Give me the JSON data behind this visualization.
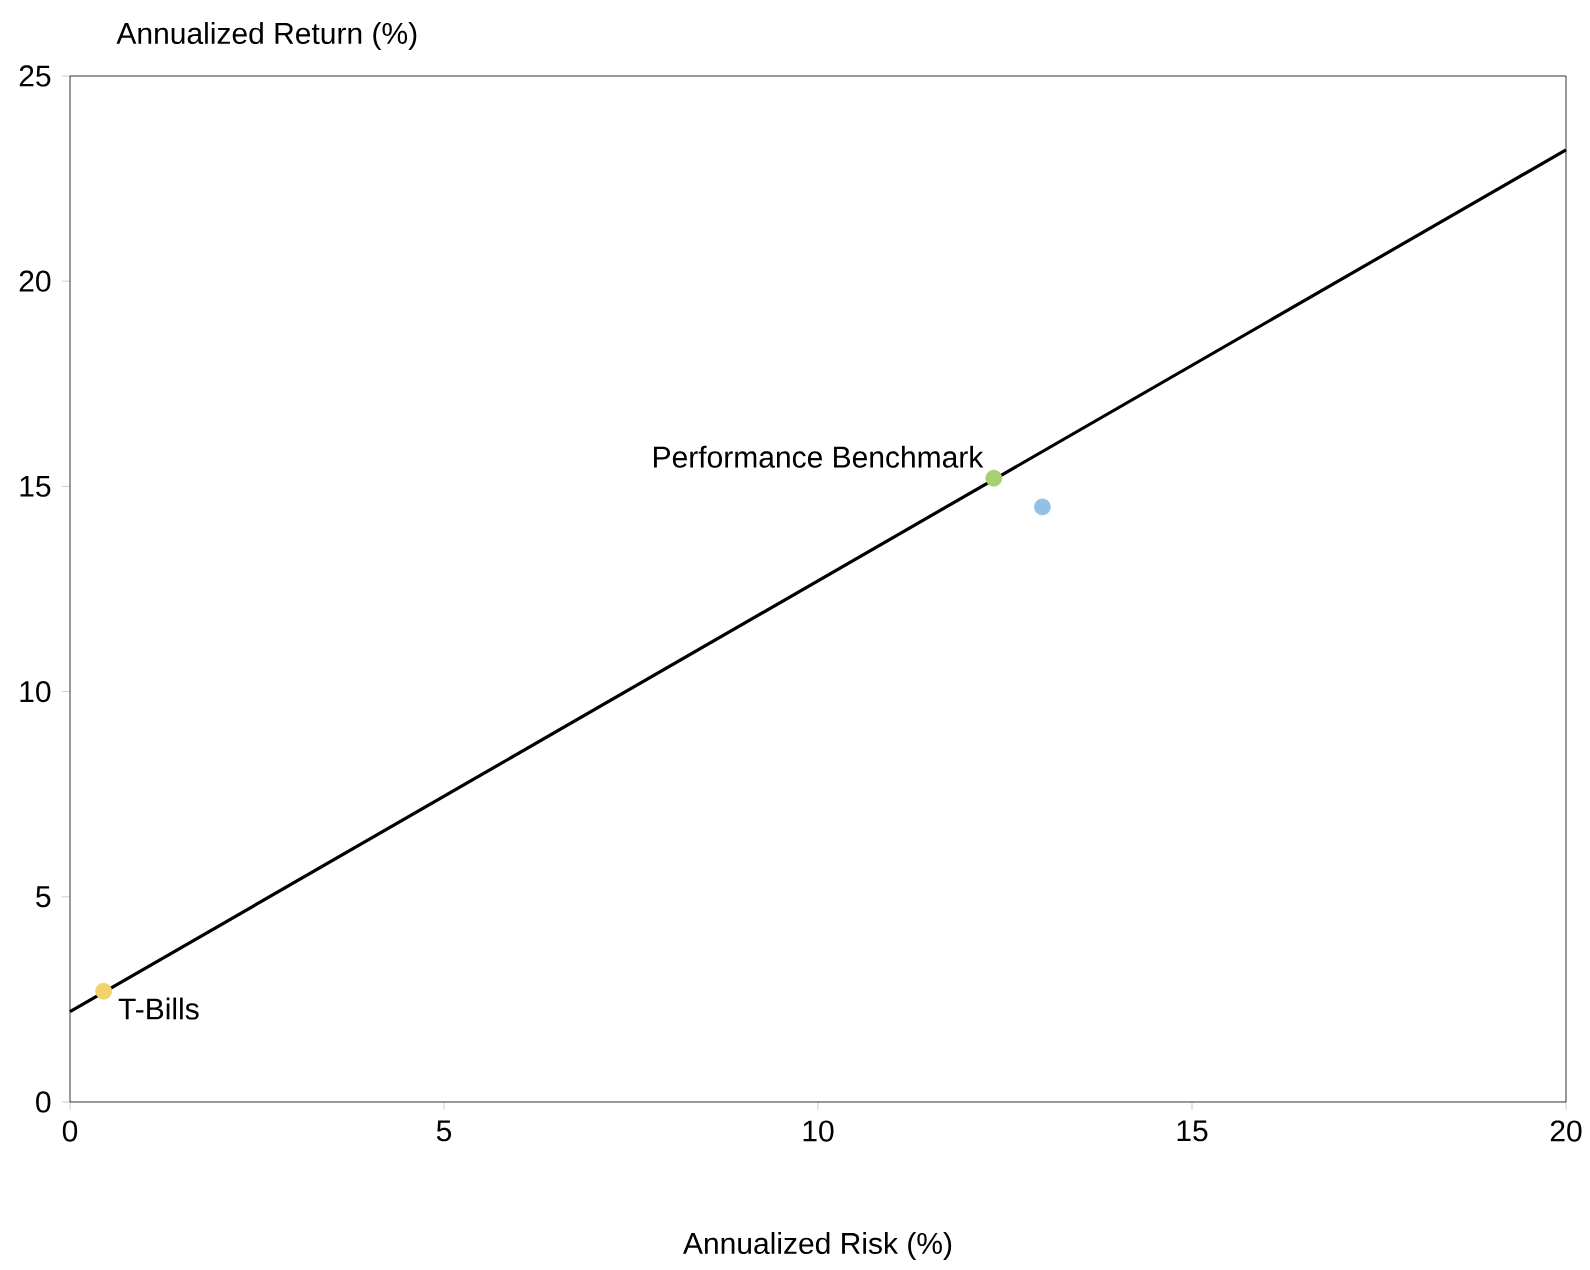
{
  "chart_data": {
    "type": "scatter",
    "xlabel": "Annualized Risk (%)",
    "ylabel": "Annualized Return (%)",
    "xlim": [
      0,
      20
    ],
    "ylim": [
      0,
      25
    ],
    "xticks": [
      0,
      5,
      10,
      15,
      20
    ],
    "yticks": [
      0,
      5,
      10,
      15,
      20,
      25
    ],
    "grid": false,
    "series": [
      {
        "type": "line",
        "x": [
          0,
          20
        ],
        "values": [
          2.2,
          23.2
        ],
        "color": "#000000"
      },
      {
        "x": [
          0.45,
          12.35,
          13.0
        ],
        "values": [
          2.7,
          15.2,
          14.5
        ],
        "colors": [
          "#f2d36b",
          "#a6d170",
          "#93c0e3"
        ]
      }
    ],
    "annotations": [
      {
        "text": "T-Bills",
        "x": 0.45,
        "y": 2.7
      },
      {
        "text": "Performance Benchmark",
        "x": 12.35,
        "y": 15.2
      }
    ]
  }
}
